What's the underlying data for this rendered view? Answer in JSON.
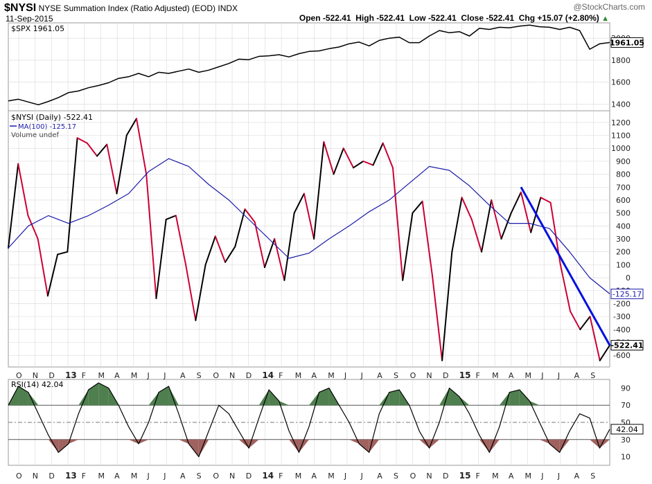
{
  "header": {
    "symbol": "$NYSI",
    "title": "NYSE Summation Index (Ratio Adjusted) (EOD)",
    "exchange": "INDX",
    "date": "11-Sep-2015",
    "open": "Open -522.41",
    "high": "High -522.41",
    "low": "Low -522.41",
    "close": "Close -522.41",
    "chg": "Chg +15.07 (+2.80%)",
    "watermark": "@StockCharts.com"
  },
  "colors": {
    "up": "#000000",
    "down": "#cc0033",
    "ma": "#1a1aa8",
    "trendline": "#0010e0",
    "rsi_over": "#4f7f4f",
    "rsi_under": "#a0625f",
    "grid": "#d8d8d8"
  },
  "chart_data": [
    {
      "type": "line",
      "panel": "spx",
      "series": [
        {
          "name": "$SPX 1961.05",
          "values": [
            1430,
            1445,
            1420,
            1395,
            1425,
            1460,
            1505,
            1520,
            1550,
            1570,
            1595,
            1635,
            1650,
            1680,
            1650,
            1690,
            1680,
            1700,
            1720,
            1690,
            1710,
            1740,
            1770,
            1810,
            1805,
            1835,
            1840,
            1850,
            1830,
            1860,
            1880,
            1885,
            1905,
            1920,
            1950,
            1965,
            1930,
            1980,
            2000,
            2010,
            1960,
            1960,
            2020,
            2070,
            2050,
            2060,
            2020,
            2090,
            2080,
            2100,
            2095,
            2110,
            2120,
            2105,
            2100,
            2080,
            2100,
            2070,
            1900,
            1950,
            1961
          ]
        }
      ],
      "last_value_label": "1961.05",
      "yticks": [
        "1400",
        "1600",
        "1800",
        "2000"
      ],
      "ylim": [
        1340,
        2140
      ]
    },
    {
      "type": "line",
      "panel": "nysi",
      "series": [
        {
          "name": "$NYSI (Daily) -522.41",
          "values": [
            230,
            880,
            480,
            300,
            -140,
            180,
            200,
            1080,
            1040,
            940,
            1030,
            650,
            1100,
            1230,
            800,
            -160,
            450,
            480,
            100,
            -330,
            100,
            320,
            120,
            240,
            530,
            430,
            80,
            300,
            -20,
            500,
            650,
            300,
            1050,
            800,
            1000,
            850,
            900,
            870,
            1040,
            850,
            -20,
            500,
            590,
            20,
            -640,
            200,
            620,
            450,
            200,
            600,
            300,
            500,
            660,
            350,
            620,
            580,
            100,
            -260,
            -400,
            -300,
            -640,
            -522
          ]
        },
        {
          "name": "MA(100) -125.17",
          "values": [
            230,
            400,
            480,
            420,
            480,
            560,
            650,
            820,
            920,
            860,
            720,
            600,
            450,
            300,
            150,
            190,
            300,
            400,
            510,
            600,
            730,
            860,
            830,
            710,
            560,
            420,
            420,
            380,
            200,
            0,
            -125
          ]
        }
      ],
      "ma_label": "MA(100) -125.17",
      "volume_label": "Volume undef",
      "last_value_label": "-522.41",
      "ma_last_label": "-125.17",
      "yticks": [
        "1200",
        "1100",
        "1000",
        "900",
        "800",
        "700",
        "600",
        "500",
        "400",
        "300",
        "200",
        "100",
        "0",
        "-100",
        "-200",
        "-300",
        "-400",
        "-500",
        "-600"
      ],
      "ylim": [
        -690,
        1290
      ]
    },
    {
      "type": "line",
      "panel": "rsi",
      "series": [
        {
          "name": "RSI(14) 42.04",
          "values": [
            70,
            92,
            85,
            60,
            35,
            15,
            25,
            60,
            88,
            96,
            90,
            70,
            45,
            25,
            50,
            85,
            92,
            60,
            25,
            10,
            40,
            70,
            60,
            40,
            20,
            55,
            88,
            75,
            40,
            15,
            45,
            85,
            90,
            70,
            50,
            25,
            15,
            60,
            85,
            88,
            70,
            40,
            20,
            50,
            90,
            80,
            60,
            35,
            15,
            45,
            85,
            88,
            75,
            50,
            25,
            15,
            40,
            60,
            55,
            20,
            42
          ]
        }
      ],
      "last_value_label": "42.04",
      "yticks": [
        "90",
        "70",
        "50",
        "30",
        "10"
      ],
      "ylim": [
        0,
        100
      ],
      "overbought": 70,
      "oversold": 30
    }
  ],
  "x_axis": {
    "labels": [
      "O",
      "N",
      "D",
      "13",
      "F",
      "M",
      "A",
      "M",
      "J",
      "J",
      "A",
      "S",
      "O",
      "N",
      "D",
      "14",
      "F",
      "M",
      "A",
      "M",
      "J",
      "J",
      "A",
      "S",
      "O",
      "N",
      "D",
      "15",
      "F",
      "M",
      "A",
      "M",
      "J",
      "J",
      "A",
      "S"
    ]
  }
}
